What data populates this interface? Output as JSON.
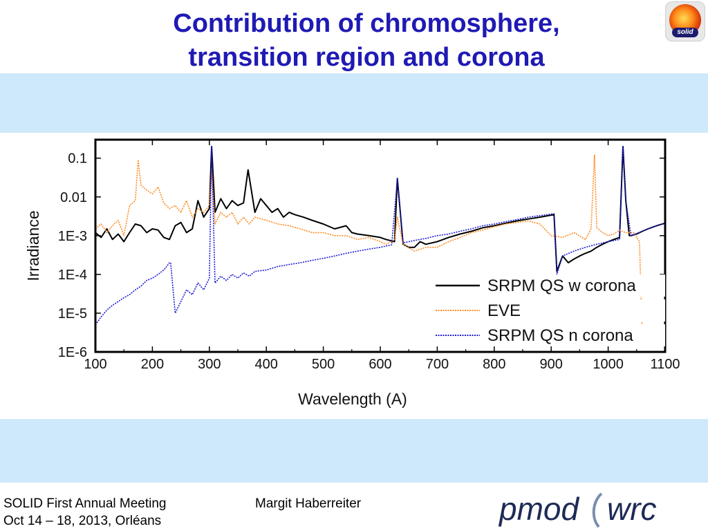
{
  "slide": {
    "title_line1": "Contribution of chromosphere,",
    "title_line2": "transition region and corona",
    "logo_text": "solid",
    "footer": {
      "meeting": "SOLID First Annual Meeting",
      "dates": "Oct 14 – 18, 2013, Orléans",
      "author": "Margit Haberreiter",
      "institute_logo_left": "pmod",
      "institute_logo_right": "wrc"
    }
  },
  "colors": {
    "title": "#1f1ab4",
    "band": "#cde9fb",
    "series_black": "#000000",
    "series_orange": "#ff8a1e",
    "series_blue": "#1a1ad6"
  },
  "chart_data": {
    "type": "line",
    "title": "",
    "xlabel": "Wavelength (A)",
    "ylabel": "Irradiance",
    "xlim": [
      100,
      1100
    ],
    "ylim": [
      1e-06,
      0.3
    ],
    "yscale": "log",
    "x_ticks": [
      100,
      200,
      300,
      400,
      500,
      600,
      700,
      800,
      900,
      1000,
      1100
    ],
    "y_ticks": [
      {
        "value": 1e-06,
        "label": "1E-6"
      },
      {
        "value": 1e-05,
        "label": "1E-5"
      },
      {
        "value": 0.0001,
        "label": "1E-4"
      },
      {
        "value": 0.001,
        "label": "1E-3"
      },
      {
        "value": 0.01,
        "label": "0.01"
      },
      {
        "value": 0.1,
        "label": "0.1"
      }
    ],
    "legend_position": "bottom-right",
    "series": [
      {
        "name": "SRPM QS w corona",
        "color": "#000000",
        "style": "solid",
        "x": [
          100,
          110,
          120,
          130,
          140,
          150,
          160,
          170,
          180,
          190,
          200,
          210,
          220,
          230,
          240,
          250,
          260,
          270,
          280,
          290,
          300,
          304,
          310,
          320,
          330,
          340,
          350,
          360,
          368,
          380,
          390,
          400,
          410,
          420,
          430,
          440,
          450,
          465,
          480,
          500,
          520,
          540,
          550,
          560,
          580,
          600,
          610,
          625,
          630,
          640,
          650,
          660,
          670,
          680,
          700,
          720,
          740,
          760,
          780,
          800,
          820,
          840,
          860,
          880,
          900,
          905,
          910,
          920,
          930,
          940,
          950,
          960,
          970,
          980,
          990,
          1000,
          1010,
          1020,
          1026,
          1031,
          1037,
          1040,
          1050,
          1060,
          1070,
          1080,
          1090,
          1100
        ],
        "y": [
          0.0012,
          0.0009,
          0.0015,
          0.0008,
          0.0011,
          0.0007,
          0.0012,
          0.002,
          0.0018,
          0.0012,
          0.0015,
          0.0014,
          0.0009,
          0.0008,
          0.0018,
          0.0022,
          0.0012,
          0.0015,
          0.008,
          0.003,
          0.005,
          0.2,
          0.004,
          0.009,
          0.005,
          0.008,
          0.006,
          0.007,
          0.05,
          0.004,
          0.009,
          0.006,
          0.004,
          0.005,
          0.003,
          0.004,
          0.0035,
          0.003,
          0.0025,
          0.002,
          0.0015,
          0.0018,
          0.0012,
          0.0011,
          0.001,
          0.0009,
          0.0008,
          0.0007,
          0.03,
          0.0006,
          0.0005,
          0.0005,
          0.0007,
          0.0006,
          0.0007,
          0.0009,
          0.0011,
          0.0013,
          0.0016,
          0.0018,
          0.0021,
          0.0024,
          0.0027,
          0.003,
          0.0034,
          0.0035,
          0.00012,
          0.0003,
          0.0002,
          0.00025,
          0.0003,
          0.00035,
          0.0004,
          0.0005,
          0.0006,
          0.0007,
          0.0008,
          0.0009,
          0.2,
          0.008,
          0.001,
          0.001,
          0.0011,
          0.0013,
          0.0015,
          0.0017,
          0.0019,
          0.0021
        ]
      },
      {
        "name": "EVE",
        "color": "#ff8a1e",
        "style": "dotted",
        "x": [
          100,
          110,
          120,
          130,
          140,
          150,
          160,
          170,
          175,
          180,
          190,
          200,
          210,
          220,
          230,
          240,
          250,
          260,
          270,
          280,
          290,
          300,
          304,
          310,
          320,
          330,
          340,
          350,
          360,
          370,
          380,
          400,
          420,
          440,
          460,
          480,
          500,
          520,
          540,
          560,
          580,
          600,
          610,
          625,
          630,
          640,
          660,
          680,
          700,
          720,
          740,
          760,
          780,
          800,
          820,
          840,
          860,
          880,
          900,
          920,
          940,
          960,
          970,
          976,
          980,
          990,
          1000,
          1010,
          1020,
          1030,
          1040,
          1045,
          1050,
          1055,
          1060
        ],
        "y": [
          0.0015,
          0.002,
          0.0012,
          0.0018,
          0.0025,
          0.001,
          0.006,
          0.008,
          0.09,
          0.02,
          0.015,
          0.012,
          0.018,
          0.007,
          0.005,
          0.006,
          0.004,
          0.008,
          0.003,
          0.005,
          0.004,
          0.006,
          0.05,
          0.002,
          0.004,
          0.003,
          0.004,
          0.002,
          0.003,
          0.002,
          0.003,
          0.0025,
          0.002,
          0.0018,
          0.0015,
          0.0012,
          0.0012,
          0.001,
          0.001,
          0.0008,
          0.0009,
          0.0007,
          0.0006,
          0.0008,
          0.003,
          0.0006,
          0.0004,
          0.0005,
          0.0005,
          0.0007,
          0.0009,
          0.0012,
          0.0014,
          0.0017,
          0.002,
          0.0022,
          0.0024,
          0.002,
          0.001,
          0.0009,
          0.0012,
          0.0008,
          0.0015,
          0.12,
          0.0016,
          0.0012,
          0.001,
          0.0011,
          0.0014,
          0.0012,
          0.0012,
          0.0012,
          0.0009,
          0.0007,
          2e-06
        ]
      },
      {
        "name": "SRPM QS n corona",
        "color": "#1a1ad6",
        "style": "dotted",
        "x": [
          100,
          110,
          120,
          130,
          140,
          150,
          160,
          170,
          180,
          190,
          200,
          210,
          220,
          225,
          230,
          232,
          240,
          250,
          260,
          270,
          280,
          290,
          300,
          304,
          310,
          320,
          330,
          340,
          350,
          360,
          370,
          380,
          400,
          420,
          440,
          460,
          480,
          500,
          520,
          540,
          560,
          580,
          600,
          620,
          630,
          640,
          660,
          680,
          700,
          720,
          740,
          760,
          780,
          800,
          820,
          840,
          860,
          880,
          900,
          905,
          910,
          920,
          940,
          960,
          980,
          1000,
          1020,
          1026,
          1031,
          1040,
          1060,
          1080,
          1100
        ],
        "y": [
          5e-06,
          8e-06,
          1.2e-05,
          1.6e-05,
          2e-05,
          2.5e-05,
          3e-05,
          4e-05,
          5e-05,
          7e-05,
          8e-05,
          0.0001,
          0.00013,
          0.00016,
          0.0002,
          0.0002,
          1e-05,
          2e-05,
          4e-05,
          3e-05,
          6e-05,
          4e-05,
          8e-05,
          0.2,
          6e-05,
          9e-05,
          7e-05,
          0.0001,
          8e-05,
          0.00011,
          9e-05,
          0.00012,
          0.00013,
          0.00016,
          0.00018,
          0.0002,
          0.00023,
          0.00026,
          0.0003,
          0.00035,
          0.0004,
          0.00045,
          0.0005,
          0.00058,
          0.03,
          0.00065,
          0.00075,
          0.00085,
          0.001,
          0.0011,
          0.0013,
          0.0015,
          0.0018,
          0.002,
          0.0023,
          0.0026,
          0.003,
          0.0033,
          0.0036,
          0.0037,
          0.0001,
          0.0003,
          0.0004,
          0.0005,
          0.0006,
          0.0007,
          0.0008,
          0.2,
          0.008,
          0.001,
          0.0013,
          0.0017,
          0.0021
        ]
      }
    ]
  }
}
